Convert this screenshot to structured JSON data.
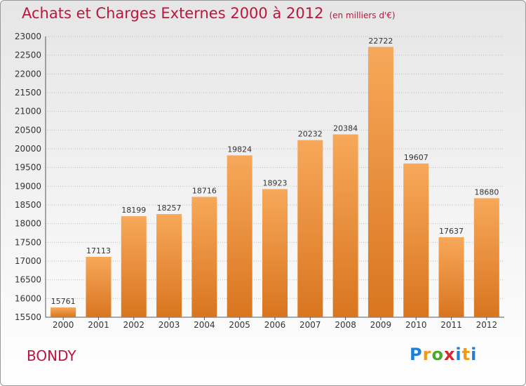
{
  "header": {
    "title": "Achats et Charges Externes 2000 à 2012",
    "subtitle": "(en milliers d'€)"
  },
  "footer": {
    "city": "BONDY",
    "logo_text": "Proxiti"
  },
  "colors": {
    "title": "#c0143c",
    "bar_light": "#f7a85a",
    "bar_dark": "#d9751f",
    "grid": "#bdbdbd"
  },
  "chart_data": {
    "type": "bar",
    "title": "Achats et Charges Externes 2000 à 2012",
    "subtitle": "(en milliers d'€)",
    "xlabel": "",
    "ylabel": "",
    "categories": [
      "2000",
      "2001",
      "2002",
      "2003",
      "2004",
      "2005",
      "2006",
      "2007",
      "2008",
      "2009",
      "2010",
      "2011",
      "2012"
    ],
    "values": [
      15761,
      17113,
      18199,
      18257,
      18716,
      19824,
      18923,
      20232,
      20384,
      22722,
      19607,
      17637,
      18680
    ],
    "ylim": [
      15500,
      23000
    ],
    "yticks": [
      15500,
      16000,
      16500,
      17000,
      17500,
      18000,
      18500,
      19000,
      19500,
      20000,
      20500,
      21000,
      21500,
      22000,
      22500,
      23000
    ],
    "grid": true,
    "legend": "none"
  }
}
